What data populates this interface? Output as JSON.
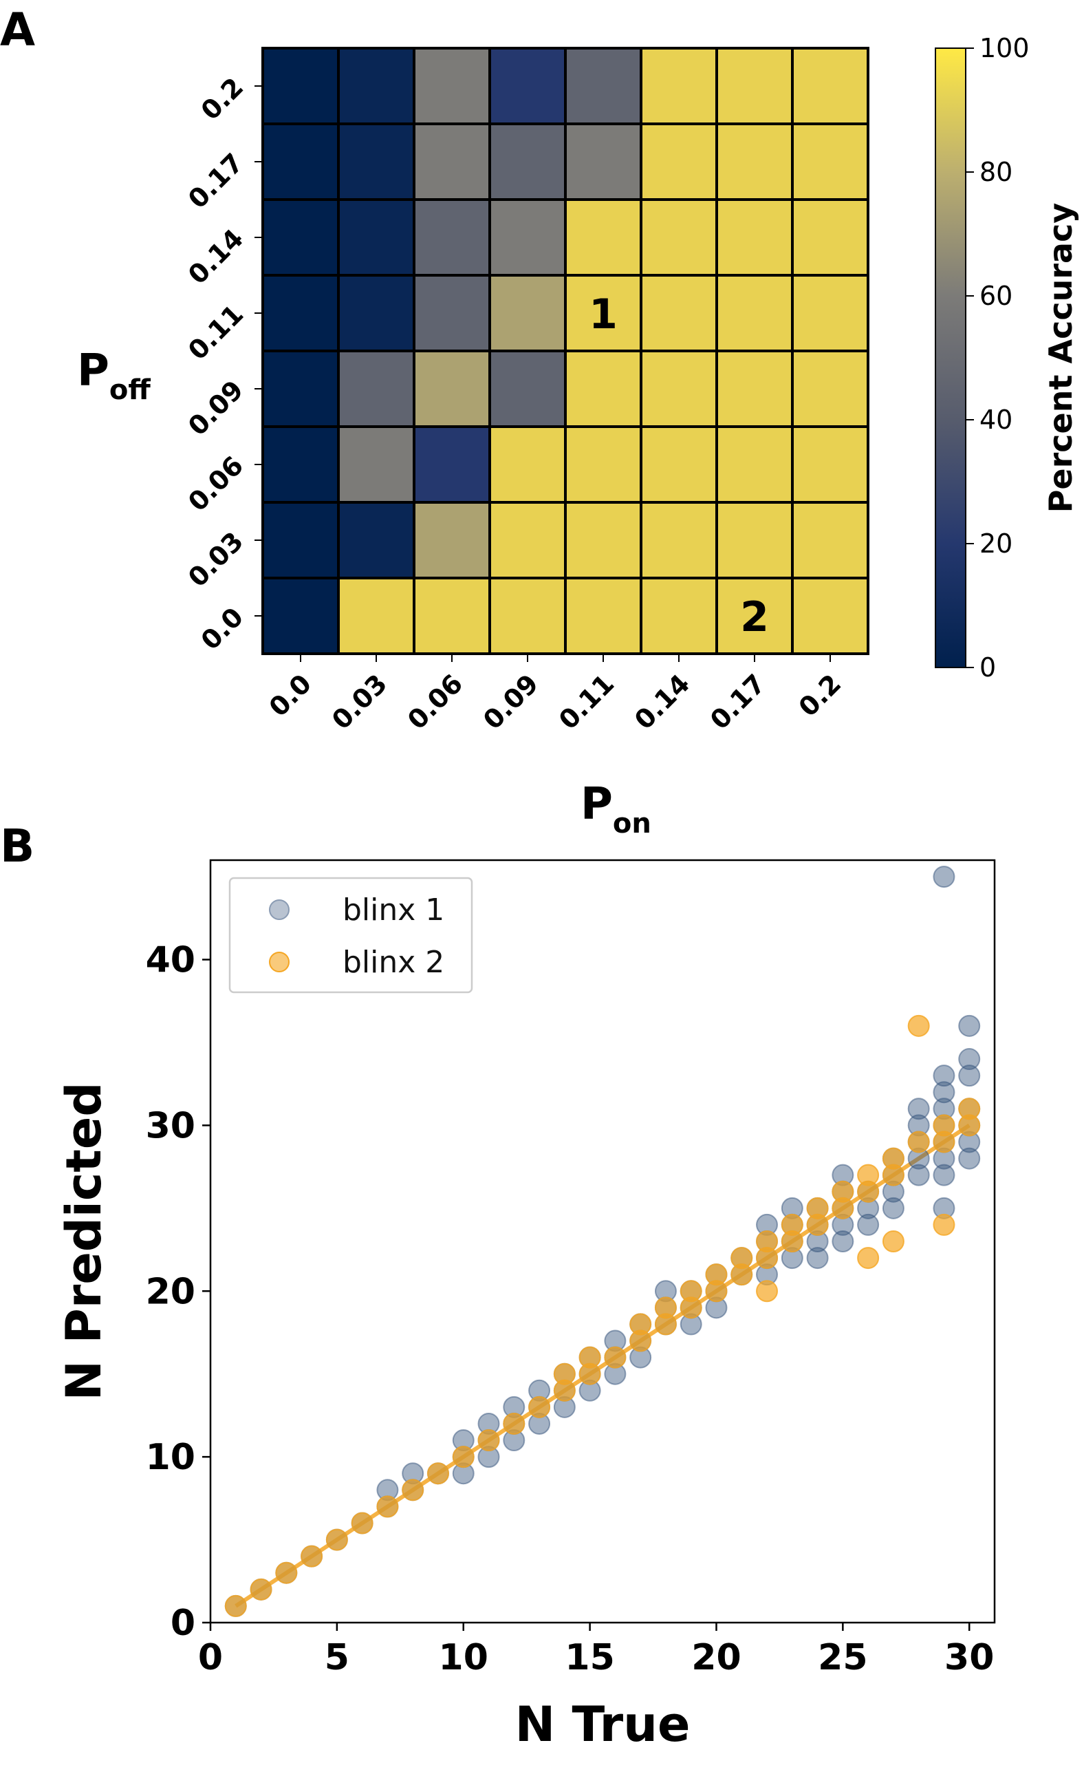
{
  "panels": {
    "a_label": "A",
    "b_label": "B"
  },
  "chart_data": [
    {
      "type": "heatmap",
      "xlabel_main": "P",
      "xlabel_sub": "on",
      "ylabel_main": "P",
      "ylabel_sub": "off",
      "x_tick_labels": [
        "0.0",
        "0.03",
        "0.06",
        "0.09",
        "0.11",
        "0.14",
        "0.17",
        "0.2"
      ],
      "y_tick_labels": [
        "0.2",
        "0.17",
        "0.14",
        "0.11",
        "0.09",
        "0.06",
        "0.03",
        "0.0"
      ],
      "values": [
        [
          0,
          5,
          60,
          20,
          45,
          100,
          100,
          100
        ],
        [
          0,
          5,
          60,
          45,
          60,
          100,
          100,
          100
        ],
        [
          0,
          5,
          45,
          60,
          100,
          100,
          100,
          100
        ],
        [
          0,
          5,
          45,
          75,
          100,
          100,
          100,
          100
        ],
        [
          0,
          45,
          75,
          45,
          100,
          100,
          100,
          100
        ],
        [
          0,
          60,
          20,
          100,
          100,
          100,
          100,
          100
        ],
        [
          0,
          5,
          75,
          100,
          100,
          100,
          100,
          100
        ],
        [
          0,
          100,
          100,
          100,
          100,
          100,
          100,
          100
        ]
      ],
      "annotations": [
        {
          "text": "1",
          "row": 3,
          "col": 4
        },
        {
          "text": "2",
          "row": 7,
          "col": 6
        }
      ],
      "colorbar": {
        "label": "Percent Accuracy",
        "range": [
          0,
          100
        ],
        "ticks": [
          "0",
          "20",
          "40",
          "60",
          "80",
          "100"
        ],
        "colormap": "cividis"
      }
    },
    {
      "type": "scatter",
      "xlabel": "N True",
      "ylabel": "N Predicted",
      "xlim": [
        0,
        31
      ],
      "ylim": [
        0,
        46
      ],
      "x_ticks": [
        "0",
        "5",
        "10",
        "15",
        "20",
        "25",
        "30"
      ],
      "y_ticks": [
        "0",
        "10",
        "20",
        "30",
        "40"
      ],
      "legend_position": "top-left",
      "series": [
        {
          "name": "blinx 1",
          "color": "#36547c",
          "points": [
            [
              1,
              1
            ],
            [
              2,
              2
            ],
            [
              3,
              3
            ],
            [
              4,
              4
            ],
            [
              5,
              5
            ],
            [
              6,
              6
            ],
            [
              7,
              7
            ],
            [
              7,
              8
            ],
            [
              8,
              8
            ],
            [
              8,
              9
            ],
            [
              9,
              9
            ],
            [
              10,
              9
            ],
            [
              10,
              10
            ],
            [
              10,
              11
            ],
            [
              11,
              10
            ],
            [
              11,
              11
            ],
            [
              11,
              12
            ],
            [
              12,
              11
            ],
            [
              12,
              12
            ],
            [
              12,
              13
            ],
            [
              13,
              12
            ],
            [
              13,
              13
            ],
            [
              13,
              14
            ],
            [
              14,
              13
            ],
            [
              14,
              14
            ],
            [
              14,
              15
            ],
            [
              15,
              14
            ],
            [
              15,
              15
            ],
            [
              15,
              16
            ],
            [
              16,
              15
            ],
            [
              16,
              16
            ],
            [
              16,
              17
            ],
            [
              17,
              16
            ],
            [
              17,
              17
            ],
            [
              17,
              18
            ],
            [
              18,
              18
            ],
            [
              18,
              19
            ],
            [
              18,
              20
            ],
            [
              19,
              18
            ],
            [
              19,
              19
            ],
            [
              19,
              20
            ],
            [
              20,
              19
            ],
            [
              20,
              20
            ],
            [
              20,
              21
            ],
            [
              21,
              21
            ],
            [
              21,
              22
            ],
            [
              22,
              21
            ],
            [
              22,
              22
            ],
            [
              22,
              23
            ],
            [
              22,
              24
            ],
            [
              23,
              22
            ],
            [
              23,
              23
            ],
            [
              23,
              24
            ],
            [
              23,
              25
            ],
            [
              24,
              22
            ],
            [
              24,
              23
            ],
            [
              24,
              24
            ],
            [
              24,
              25
            ],
            [
              25,
              23
            ],
            [
              25,
              24
            ],
            [
              25,
              25
            ],
            [
              25,
              26
            ],
            [
              25,
              27
            ],
            [
              26,
              24
            ],
            [
              26,
              25
            ],
            [
              26,
              26
            ],
            [
              27,
              25
            ],
            [
              27,
              26
            ],
            [
              27,
              27
            ],
            [
              27,
              28
            ],
            [
              28,
              27
            ],
            [
              28,
              28
            ],
            [
              28,
              29
            ],
            [
              28,
              30
            ],
            [
              28,
              31
            ],
            [
              29,
              25
            ],
            [
              29,
              27
            ],
            [
              29,
              28
            ],
            [
              29,
              29
            ],
            [
              29,
              30
            ],
            [
              29,
              31
            ],
            [
              29,
              32
            ],
            [
              29,
              33
            ],
            [
              29,
              45
            ],
            [
              30,
              28
            ],
            [
              30,
              29
            ],
            [
              30,
              30
            ],
            [
              30,
              31
            ],
            [
              30,
              33
            ],
            [
              30,
              34
            ],
            [
              30,
              36
            ]
          ]
        },
        {
          "name": "blinx 2",
          "color": "#f5a623",
          "points": [
            [
              1,
              1
            ],
            [
              2,
              2
            ],
            [
              3,
              3
            ],
            [
              4,
              4
            ],
            [
              5,
              5
            ],
            [
              6,
              6
            ],
            [
              7,
              7
            ],
            [
              8,
              8
            ],
            [
              9,
              9
            ],
            [
              10,
              10
            ],
            [
              11,
              11
            ],
            [
              12,
              12
            ],
            [
              13,
              13
            ],
            [
              14,
              14
            ],
            [
              14,
              15
            ],
            [
              15,
              15
            ],
            [
              15,
              16
            ],
            [
              16,
              16
            ],
            [
              17,
              17
            ],
            [
              17,
              18
            ],
            [
              18,
              18
            ],
            [
              18,
              19
            ],
            [
              19,
              19
            ],
            [
              19,
              20
            ],
            [
              20,
              20
            ],
            [
              20,
              21
            ],
            [
              21,
              21
            ],
            [
              21,
              22
            ],
            [
              22,
              20
            ],
            [
              22,
              22
            ],
            [
              22,
              23
            ],
            [
              23,
              23
            ],
            [
              23,
              24
            ],
            [
              24,
              24
            ],
            [
              24,
              25
            ],
            [
              25,
              25
            ],
            [
              25,
              26
            ],
            [
              26,
              22
            ],
            [
              26,
              26
            ],
            [
              26,
              27
            ],
            [
              27,
              23
            ],
            [
              27,
              27
            ],
            [
              27,
              28
            ],
            [
              28,
              29
            ],
            [
              28,
              36
            ],
            [
              29,
              24
            ],
            [
              29,
              29
            ],
            [
              29,
              30
            ],
            [
              30,
              30
            ],
            [
              30,
              31
            ]
          ],
          "fit_line": [
            [
              1,
              1
            ],
            [
              30,
              30
            ]
          ]
        }
      ]
    }
  ]
}
